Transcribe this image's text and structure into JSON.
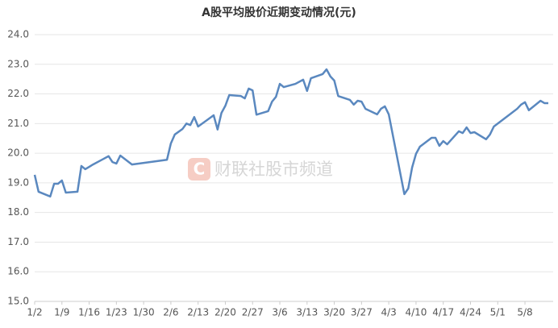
{
  "chart_data": {
    "type": "line",
    "title": "A股平均股价近期变动情况(元)",
    "watermark": "财联社股市频道",
    "x": [
      "1/2",
      "1/3",
      "1/6",
      "1/7",
      "1/8",
      "1/9",
      "1/10",
      "1/13",
      "1/14",
      "1/15",
      "1/16",
      "1/17",
      "1/19",
      "1/21",
      "1/22",
      "1/23",
      "1/24",
      "1/27",
      "2/5",
      "2/6",
      "2/7",
      "2/9",
      "2/10",
      "2/11",
      "2/12",
      "2/13",
      "2/17",
      "2/18",
      "2/19",
      "2/20",
      "2/21",
      "2/24",
      "2/25",
      "2/26",
      "2/27",
      "2/28",
      "3/3",
      "3/4",
      "3/5",
      "3/6",
      "3/7",
      "3/10",
      "3/12",
      "3/13",
      "3/14",
      "3/17",
      "3/18",
      "3/19",
      "3/20",
      "3/21",
      "3/24",
      "3/25",
      "3/26",
      "3/27",
      "3/28",
      "3/31",
      "4/1",
      "4/2",
      "4/3",
      "4/7",
      "4/8",
      "4/9",
      "4/10",
      "4/11",
      "4/14",
      "4/15",
      "4/16",
      "4/17",
      "4/18",
      "4/21",
      "4/22",
      "4/23",
      "4/24",
      "4/25",
      "4/28",
      "4/29",
      "4/30",
      "5/6",
      "5/7",
      "5/8",
      "5/9",
      "5/12",
      "5/13",
      "5/14"
    ],
    "series": [
      {
        "name": "A股平均股价",
        "color": "#5a88bf",
        "values": [
          19.27,
          18.7,
          18.54,
          18.97,
          18.97,
          19.08,
          18.67,
          18.7,
          19.57,
          19.46,
          19.54,
          19.62,
          19.76,
          19.9,
          19.7,
          19.65,
          19.92,
          19.62,
          19.78,
          20.33,
          20.63,
          20.82,
          21.0,
          20.95,
          21.22,
          20.9,
          21.28,
          20.8,
          21.36,
          21.6,
          21.96,
          21.93,
          21.85,
          22.18,
          22.12,
          21.3,
          21.42,
          21.74,
          21.9,
          22.34,
          22.23,
          22.34,
          22.48,
          22.1,
          22.53,
          22.67,
          22.83,
          22.59,
          22.45,
          21.93,
          21.8,
          21.64,
          21.77,
          21.74,
          21.5,
          21.31,
          21.5,
          21.58,
          21.31,
          18.62,
          18.81,
          19.52,
          19.98,
          20.22,
          20.52,
          20.52,
          20.25,
          20.41,
          20.3,
          20.74,
          20.68,
          20.87,
          20.68,
          20.71,
          20.47,
          20.63,
          20.9,
          21.5,
          21.64,
          21.72,
          21.45,
          21.77,
          21.69,
          21.69
        ]
      }
    ],
    "xticks": [
      "1/2",
      "1/9",
      "1/16",
      "1/23",
      "1/30",
      "2/6",
      "2/13",
      "2/20",
      "2/27",
      "3/6",
      "3/13",
      "3/20",
      "3/27",
      "4/3",
      "4/10",
      "4/17",
      "4/24",
      "5/1",
      "5/8"
    ],
    "ylim": [
      15,
      24
    ],
    "yticks": [
      {
        "value": 15,
        "label": "15.0"
      },
      {
        "value": 16,
        "label": "16.0"
      },
      {
        "value": 17,
        "label": "17.0"
      },
      {
        "value": 18,
        "label": "18.0"
      },
      {
        "value": 19,
        "label": "19.0"
      },
      {
        "value": 20,
        "label": "20.0"
      },
      {
        "value": 21,
        "label": "21.0"
      },
      {
        "value": 22,
        "label": "22.0"
      },
      {
        "value": 23,
        "label": "23.0"
      },
      {
        "value": 24,
        "label": "24.0"
      }
    ],
    "grid": true
  }
}
